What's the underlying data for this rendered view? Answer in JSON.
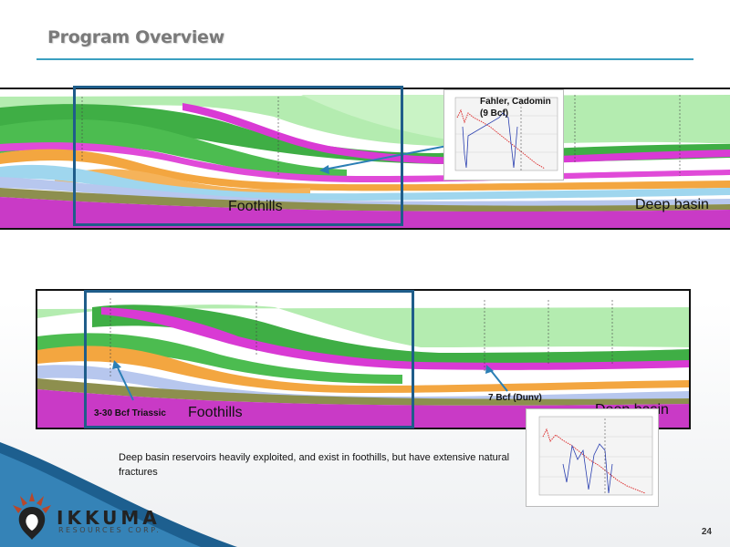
{
  "slide": {
    "title": "Program Overview",
    "page_number": "24",
    "caption": "Deep basin reservoirs heavily exploited, and exist in foothills, but have extensive natural fractures"
  },
  "section_top": {
    "foothills_label": "Foothills",
    "deep_basin_label": "Deep basin",
    "callout": "Fahler, Cadomin (9 Bcf)"
  },
  "section_bottom": {
    "foothills_label": "Foothills",
    "deep_basin_label": "Deep basin",
    "callout_left": "3-30 Bcf Triassic",
    "callout_right": "7 Bcf (Dunv)"
  },
  "logo": {
    "name": "IKKUMA",
    "subtitle": "RESOURCES CORP."
  },
  "colors": {
    "title": "#7a7a7a",
    "rule": "#3a9fc0",
    "selection_box": "#1f5d8a",
    "magenta": "#d93ad4",
    "green_dark": "#3fae45",
    "green_light": "#9fe09a",
    "orange": "#f3a640",
    "light_blue": "#9fd6ee"
  }
}
